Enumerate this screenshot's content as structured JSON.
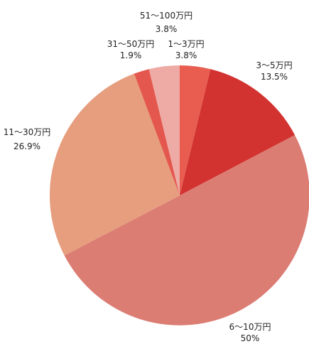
{
  "chart_data": {
    "type": "pie",
    "title": "",
    "slices": [
      {
        "label": "1〜3万円",
        "value": 3.8,
        "display": "3.8%",
        "color": "#e85d50"
      },
      {
        "label": "3〜5万円",
        "value": 13.5,
        "display": "13.5%",
        "color": "#d23330"
      },
      {
        "label": "6〜10万円",
        "value": 50,
        "display": "50%",
        "color": "#dc7d74"
      },
      {
        "label": "11〜30万円",
        "value": 26.9,
        "display": "26.9%",
        "color": "#e69e7e"
      },
      {
        "label": "31〜50万円",
        "value": 1.9,
        "display": "1.9%",
        "color": "#e4574e"
      },
      {
        "label": "51〜100万円",
        "value": 3.8,
        "display": "3.8%",
        "color": "#eeaaa4"
      }
    ]
  }
}
